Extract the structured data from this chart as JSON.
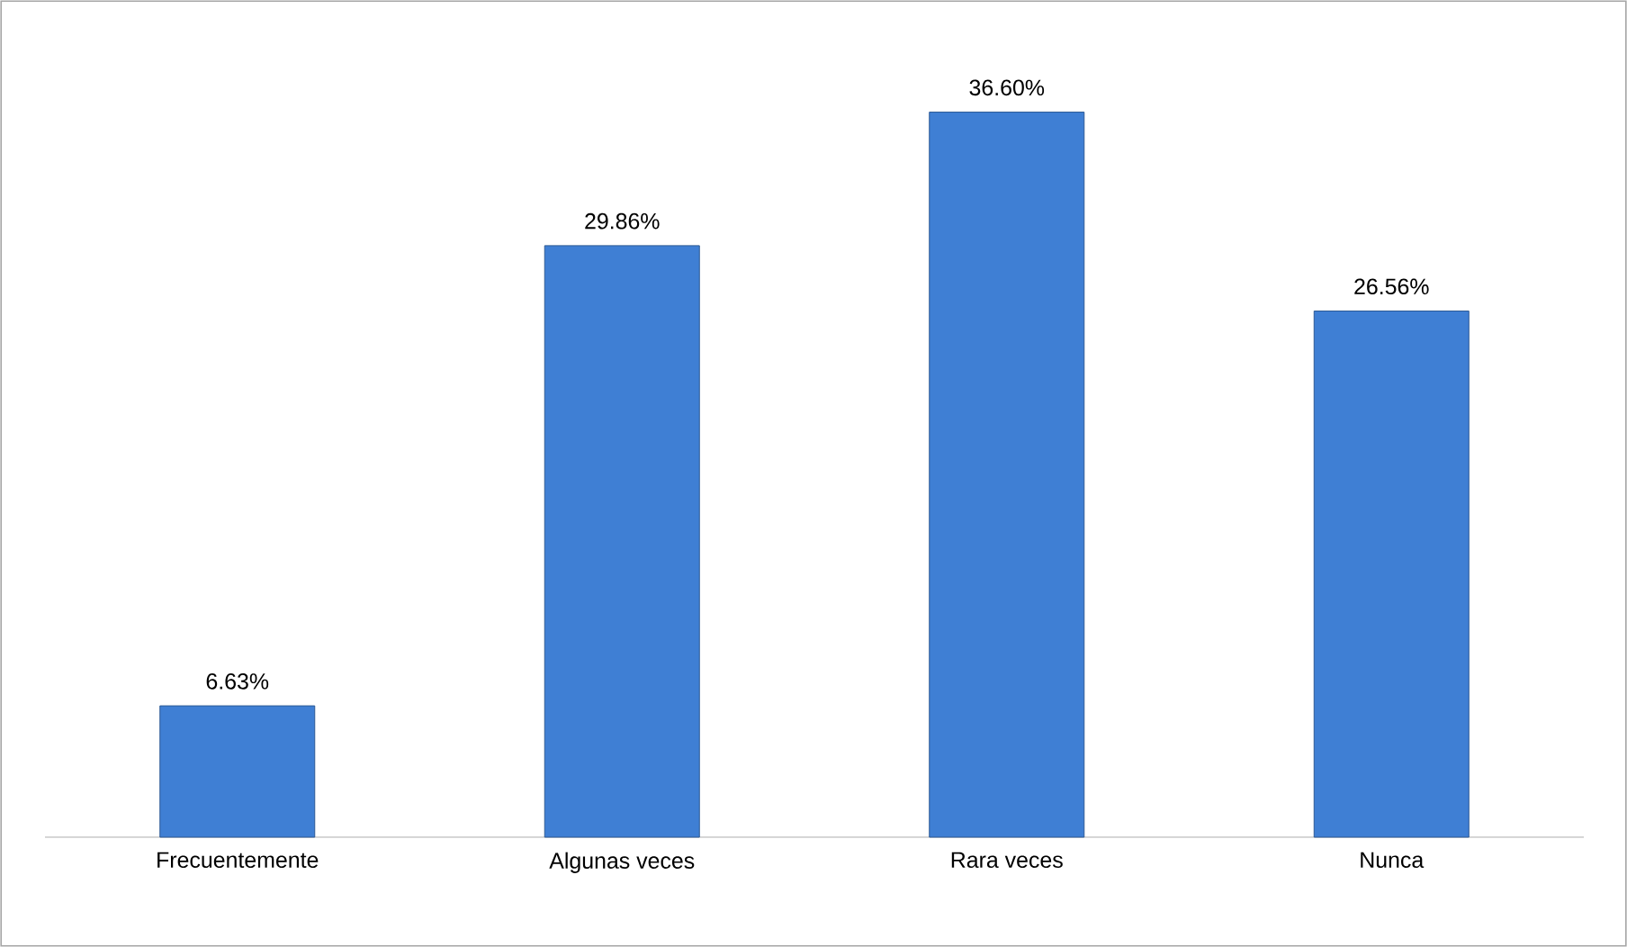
{
  "chart_data": {
    "type": "bar",
    "categories": [
      "Frecuentemente",
      "Algunas veces",
      "Rara veces",
      "Nunca"
    ],
    "values": [
      6.63,
      29.86,
      36.6,
      26.56
    ],
    "value_labels": [
      "6.63%",
      "29.86%",
      "36.60%",
      "26.56%"
    ],
    "color": "#3f7fd4"
  }
}
